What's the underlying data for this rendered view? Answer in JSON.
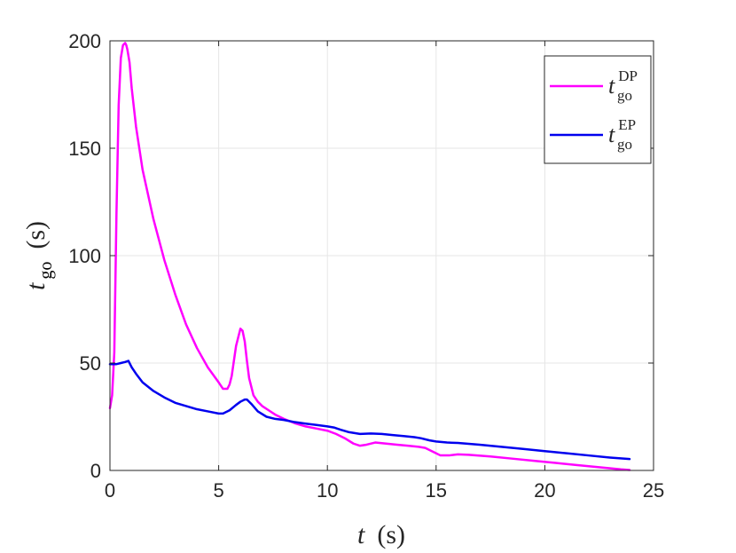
{
  "chart_data": {
    "type": "line",
    "xlabel": {
      "var": "t",
      "unit": "(s)"
    },
    "ylabel": {
      "var": "t",
      "sub": "go",
      "unit": "(s)"
    },
    "xlim": [
      0,
      25
    ],
    "ylim": [
      0,
      200
    ],
    "xticks": [
      0,
      5,
      10,
      15,
      20,
      25
    ],
    "yticks": [
      0,
      50,
      100,
      150,
      200
    ],
    "xtick_labels": [
      "0",
      "5",
      "10",
      "15",
      "20",
      "25"
    ],
    "ytick_labels": [
      "0",
      "50",
      "100",
      "150",
      "200"
    ],
    "grid": true,
    "legend_position": "top-right",
    "series": [
      {
        "name": "t_go^DP",
        "label": {
          "var": "t",
          "sub": "go",
          "sup": "DP"
        },
        "color": "#ff00ff",
        "x": [
          0.0,
          0.1,
          0.2,
          0.3,
          0.4,
          0.5,
          0.6,
          0.7,
          0.75,
          0.8,
          0.9,
          1.0,
          1.2,
          1.5,
          2.0,
          2.5,
          3.0,
          3.5,
          4.0,
          4.5,
          5.0,
          5.2,
          5.4,
          5.5,
          5.6,
          5.7,
          5.8,
          6.0,
          6.1,
          6.2,
          6.3,
          6.4,
          6.6,
          6.8,
          7.0,
          7.3,
          7.6,
          8.0,
          8.5,
          9.0,
          9.5,
          10.0,
          10.4,
          10.8,
          11.2,
          11.5,
          11.8,
          12.2,
          12.7,
          13.2,
          13.7,
          14.2,
          14.5,
          14.8,
          15.2,
          15.6,
          16.0,
          16.5,
          17.5,
          18.5,
          19.5,
          20.5,
          21.5,
          22.5,
          23.5,
          23.9
        ],
        "y": [
          29,
          35,
          55,
          120,
          170,
          192,
          198,
          199,
          198,
          196,
          190,
          178,
          160,
          140,
          117,
          98,
          82,
          68,
          57,
          48,
          41,
          38,
          38,
          40,
          44,
          51,
          58,
          66,
          65,
          60,
          51,
          43,
          35,
          32,
          30,
          28,
          26,
          24,
          22,
          20.5,
          19.5,
          18.5,
          17,
          15,
          12.5,
          11.5,
          12,
          13,
          12.5,
          12,
          11.5,
          11,
          10.5,
          9,
          7,
          7,
          7.5,
          7.3,
          6.5,
          5.5,
          4.5,
          3.5,
          2.5,
          1.5,
          0.5,
          0.2
        ]
      },
      {
        "name": "t_go^EP",
        "label": {
          "var": "t",
          "sub": "go",
          "sup": "EP"
        },
        "color": "#0000ee",
        "x": [
          0.0,
          0.3,
          0.5,
          0.7,
          0.85,
          1.0,
          1.2,
          1.5,
          2.0,
          2.5,
          3.0,
          3.5,
          4.0,
          4.5,
          5.0,
          5.2,
          5.5,
          5.8,
          6.0,
          6.2,
          6.3,
          6.5,
          6.8,
          7.2,
          7.6,
          8.0,
          8.5,
          9.0,
          9.5,
          10.0,
          10.3,
          10.6,
          11.0,
          11.5,
          12.0,
          12.5,
          13.0,
          13.5,
          14.0,
          14.3,
          14.7,
          15.0,
          15.5,
          16.0,
          17.0,
          18.0,
          19.0,
          20.0,
          21.0,
          22.0,
          23.0,
          23.9
        ],
        "y": [
          49.5,
          49.5,
          50,
          50.5,
          51,
          48,
          45,
          41,
          37,
          34,
          31.5,
          30,
          28.5,
          27.5,
          26.5,
          26.5,
          28,
          30.5,
          32,
          33,
          33,
          31,
          27.5,
          25,
          24,
          23.5,
          22.5,
          21.8,
          21.2,
          20.5,
          20,
          19,
          17.8,
          17,
          17.2,
          17,
          16.5,
          16,
          15.5,
          15,
          14,
          13.5,
          13,
          12.8,
          12,
          11,
          10,
          9,
          8,
          7,
          6,
          5.3
        ]
      }
    ]
  }
}
